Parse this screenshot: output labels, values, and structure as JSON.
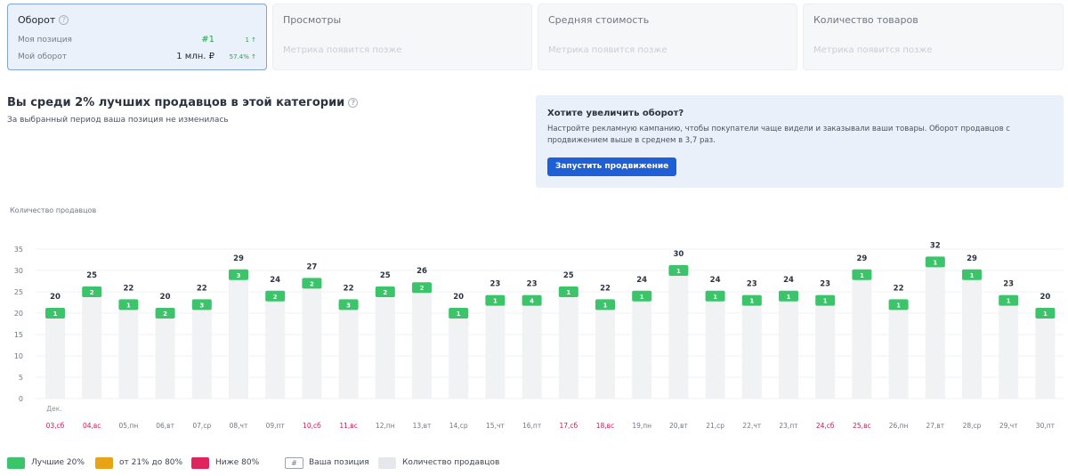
{
  "cards": {
    "turnover": {
      "title": "Оборот",
      "rows": [
        {
          "label": "Моя позиция",
          "value": "#1",
          "delta": "1 ↑"
        },
        {
          "label": "Мой оборот",
          "value": "1 млн. ₽",
          "delta": "57.4% ↑"
        }
      ]
    },
    "views": {
      "title": "Просмотры",
      "placeholder": "Метрика появится позже"
    },
    "avg_cost": {
      "title": "Средняя стоимость",
      "placeholder": "Метрика появится позже"
    },
    "goods_count": {
      "title": "Количество товаров",
      "placeholder": "Метрика появится позже"
    }
  },
  "heading": {
    "title": "Вы среди 2% лучших продавцов в этой категории",
    "subtitle": "За выбранный период ваша позиция не изменилась"
  },
  "promo": {
    "title": "Хотите увеличить оборот?",
    "text": "Настройте рекламную кампанию, чтобы покупатели чаще видели и заказывали ваши товары. Оборот продавцов с продвижением выше в среднем в 3,7 раз.",
    "button": "Запустить продвижение"
  },
  "colors": {
    "top20": "#3bc46a",
    "mid": "#e8a317",
    "below80": "#e0245e",
    "bar": "#f1f2f4",
    "weekend": "#d1164f"
  },
  "chart_data": {
    "type": "bar",
    "ylabel": "Количество продавцов",
    "ylim": [
      0,
      35
    ],
    "yticks": [
      0,
      5,
      10,
      15,
      20,
      25,
      30,
      35
    ],
    "month_label": "Дек.",
    "categories": [
      "03,сб",
      "04,вс",
      "05,пн",
      "06,вт",
      "07,ср",
      "08,чт",
      "09,пт",
      "10,сб",
      "11,вс",
      "12,пн",
      "13,вт",
      "14,ср",
      "15,чт",
      "16,пт",
      "17,сб",
      "18,вс",
      "19,пн",
      "20,вт",
      "21,ср",
      "22,чт",
      "23,пт",
      "24,сб",
      "25,вс",
      "26,пн",
      "27,вт",
      "28,ср",
      "29,чт",
      "30,пт"
    ],
    "weekend": [
      true,
      true,
      false,
      false,
      false,
      false,
      false,
      true,
      true,
      false,
      false,
      false,
      false,
      false,
      true,
      true,
      false,
      false,
      false,
      false,
      false,
      true,
      true,
      false,
      false,
      false,
      false,
      false
    ],
    "series": [
      {
        "name": "Количество продавцов",
        "values": [
          20,
          25,
          22,
          20,
          22,
          29,
          24,
          27,
          22,
          25,
          26,
          20,
          23,
          23,
          25,
          22,
          24,
          30,
          24,
          23,
          24,
          23,
          29,
          22,
          32,
          29,
          23,
          20
        ]
      },
      {
        "name": "Ваша позиция",
        "values": [
          1,
          2,
          1,
          2,
          3,
          3,
          2,
          2,
          3,
          2,
          2,
          1,
          1,
          4,
          1,
          1,
          1,
          1,
          1,
          1,
          1,
          1,
          1,
          1,
          1,
          1,
          1,
          1
        ]
      }
    ],
    "grid": true,
    "legend": [
      {
        "label": "Лучшие 20%",
        "color": "#3bc46a"
      },
      {
        "label": "от 21% до 80%",
        "color": "#e8a317"
      },
      {
        "label": "Ниже 80%",
        "color": "#e0245e"
      },
      {
        "label": "Ваша позиция",
        "symbol": "#"
      },
      {
        "label": "Количество продавцов",
        "color": "#e4e7ec"
      }
    ]
  }
}
